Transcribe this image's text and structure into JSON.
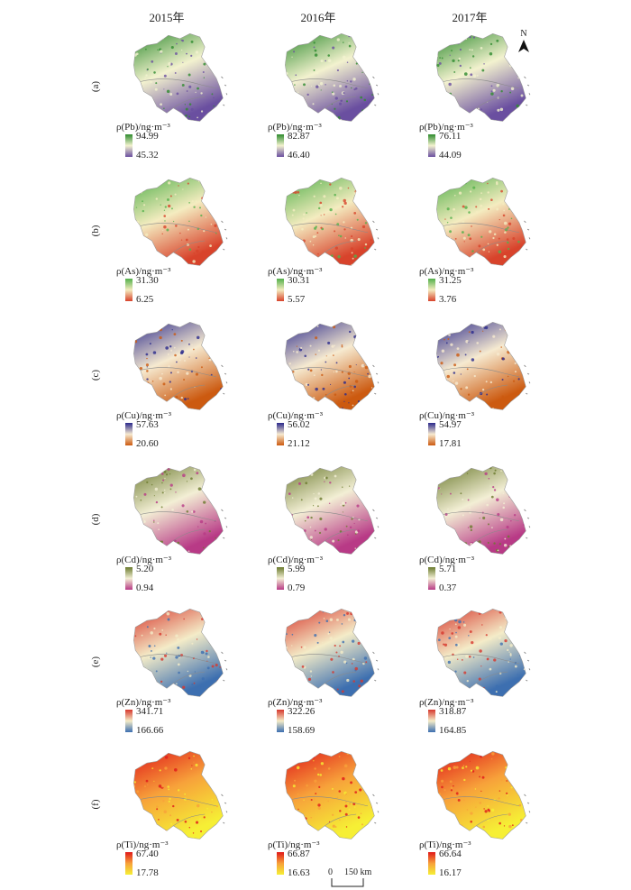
{
  "years": [
    "2015年",
    "2016年",
    "2017年"
  ],
  "north_label": "N",
  "scale": {
    "zero": "0",
    "label": "150 km"
  },
  "palettes": {
    "Pb": {
      "high": "#2e8b2e",
      "mid": "#f3f2cf",
      "low": "#6a4fa0"
    },
    "As": {
      "high": "#52b04a",
      "mid": "#f4ecc0",
      "low": "#d8432b"
    },
    "Cu": {
      "high": "#2b2a8c",
      "mid": "#f6ead0",
      "low": "#cc5a10"
    },
    "Cd": {
      "high": "#6b7a2e",
      "mid": "#f3efd5",
      "low": "#b83a86"
    },
    "Zn": {
      "high": "#d7372d",
      "mid": "#f4ecc8",
      "low": "#3d6fb0"
    },
    "Ti": {
      "high": "#e0191a",
      "mid": "#f7a13a",
      "low": "#f6ef35"
    }
  },
  "rows": [
    {
      "label": "(a)",
      "element": "Pb",
      "panels": [
        {
          "title": "ρ(Pb)/ng·m⁻³",
          "max": "94.99",
          "min": "45.32"
        },
        {
          "title": "ρ(Pb)/ng·m⁻³",
          "max": "82.87",
          "min": "46.40"
        },
        {
          "title": "ρ(Pb)/ng·m⁻³",
          "max": "76.11",
          "min": "44.09"
        }
      ]
    },
    {
      "label": "(b)",
      "element": "As",
      "panels": [
        {
          "title": "ρ(As)/ng·m⁻³",
          "max": "31.30",
          "min": "6.25"
        },
        {
          "title": "ρ(As)/ng·m⁻³",
          "max": "30.31",
          "min": "5.57"
        },
        {
          "title": "ρ(As)/ng·m⁻³",
          "max": "31.25",
          "min": "3.76"
        }
      ]
    },
    {
      "label": "(c)",
      "element": "Cu",
      "panels": [
        {
          "title": "ρ(Cu)/ng·m⁻³",
          "max": "57.63",
          "min": "20.60"
        },
        {
          "title": "ρ(Cu)/ng·m⁻³",
          "max": "56.02",
          "min": "21.12"
        },
        {
          "title": "ρ(Cu)/ng·m⁻³",
          "max": "54.97",
          "min": "17.81"
        }
      ]
    },
    {
      "label": "(d)",
      "element": "Cd",
      "panels": [
        {
          "title": "ρ(Cd)/ng·m⁻³",
          "max": "5.20",
          "min": "0.94"
        },
        {
          "title": "ρ(Cd)/ng·m⁻³",
          "max": "5.99",
          "min": "0.79"
        },
        {
          "title": "ρ(Cd)/ng·m⁻³",
          "max": "5.71",
          "min": "0.37"
        }
      ]
    },
    {
      "label": "(e)",
      "element": "Zn",
      "panels": [
        {
          "title": "ρ(Zn)/ng·m⁻³",
          "max": "341.71",
          "min": "166.66"
        },
        {
          "title": "ρ(Zn)/ng·m⁻³",
          "max": "322.26",
          "min": "158.69"
        },
        {
          "title": "ρ(Zn)/ng·m⁻³",
          "max": "318.87",
          "min": "164.85"
        }
      ]
    },
    {
      "label": "(f)",
      "element": "Ti",
      "panels": [
        {
          "title": "ρ(Ti)/ng·m⁻³",
          "max": "67.40",
          "min": "17.78"
        },
        {
          "title": "ρ(Ti)/ng·m⁻³",
          "max": "66.87",
          "min": "16.63"
        },
        {
          "title": "ρ(Ti)/ng·m⁻³",
          "max": "66.64",
          "min": "16.17"
        }
      ]
    }
  ]
}
